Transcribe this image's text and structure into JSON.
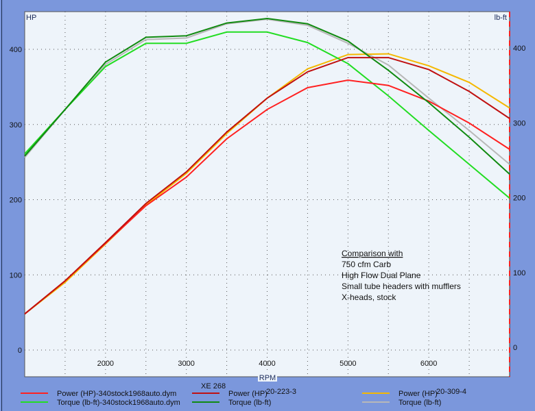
{
  "chart_data": {
    "type": "line",
    "title": "",
    "xlabel": "RPM",
    "ylabel_left": "HP",
    "ylabel_right": "lb-ft",
    "xlim": [
      1000,
      7000
    ],
    "ylim": [
      0,
      440
    ],
    "x_ticks": [
      2000,
      3000,
      4000,
      5000,
      6000
    ],
    "y_ticks_left": [
      0,
      100,
      200,
      300,
      400
    ],
    "y_ticks_right": [
      0,
      100,
      200,
      300,
      400
    ],
    "grid": true,
    "x": [
      1000,
      1500,
      2000,
      2500,
      3000,
      3500,
      4000,
      4500,
      5000,
      5500,
      6000,
      6500,
      7000
    ],
    "legend_group_title": "XE 268",
    "series": [
      {
        "name": "Power (HP)-340stock1968auto.dym",
        "color": "#ff2020",
        "values": [
          48,
          92,
          142,
          192,
          230,
          281,
          320,
          349,
          359,
          352,
          331,
          302,
          267
        ]
      },
      {
        "name": "Torque (lb-ft)-340stock1968auto.dym",
        "color": "#22dd22",
        "values": [
          261,
          320,
          377,
          408,
          408,
          423,
          423,
          409,
          381,
          338,
          292,
          247,
          202
        ]
      },
      {
        "name": "Power (HP)",
        "suffix": "20-223-3",
        "color": "#c01010",
        "values": [
          48,
          92,
          143,
          195,
          237,
          290,
          335,
          370,
          389,
          389,
          373,
          344,
          308
        ]
      },
      {
        "name": "Torque (lb-ft)",
        "color": "#108a10",
        "values": [
          258,
          320,
          383,
          416,
          418,
          435,
          441,
          434,
          411,
          372,
          329,
          283,
          234
        ]
      },
      {
        "name": "Power (HP)",
        "suffix": "20-309-4",
        "color": "#f5b800",
        "values": [
          48,
          90,
          141,
          193,
          235,
          288,
          335,
          374,
          393,
          394,
          378,
          356,
          322
        ]
      },
      {
        "name": "Torque (lb-ft)",
        "color": "#b8b8b8",
        "values": [
          256,
          320,
          380,
          413,
          415,
          434,
          440,
          432,
          408,
          379,
          335,
          292,
          247
        ]
      }
    ],
    "annotation": {
      "heading": "Comparison with",
      "lines": [
        "750 cfm Carb",
        "High Flow Dual Plane",
        "Small tube headers with mufflers",
        "X-heads, stock"
      ]
    }
  }
}
